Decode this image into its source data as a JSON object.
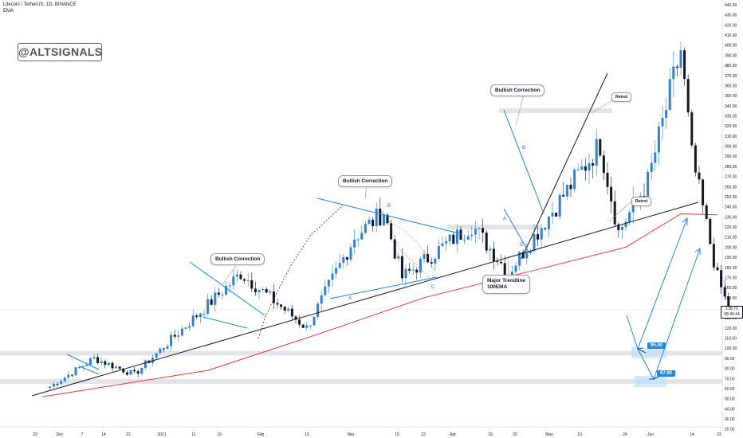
{
  "header": {
    "symbol_line": "Litecoin / TetherUS, 1D, BINANCE",
    "indicator": "EMA"
  },
  "watermark": "@ALTSIGNALS",
  "annotations": {
    "bullish_1": "Bullish Correction",
    "bullish_2": "Bullish Correction",
    "bullish_3": "Bullish Correction",
    "retest_1": "Retest",
    "retest_2": "Retest",
    "trendline_1": "Major Trendline",
    "trendline_2": "100EMA",
    "wave_a1": "A",
    "wave_b1": "B",
    "wave_c1": "C",
    "wave_a2": "A",
    "wave_b2": "B",
    "wave_c2": "C"
  },
  "targets": {
    "t1": "95.00",
    "t2": "67.00"
  },
  "last_price": {
    "price": "138.72",
    "countdown": "08:45:44"
  },
  "colors": {
    "up": "#2f80d8",
    "down": "#131722",
    "ema": "#e53935",
    "trend": "#131722",
    "channel": "#1e88e5",
    "zone": "#d9dbe0",
    "target_zone": "#bbdefb"
  },
  "chart_data": {
    "type": "candlestick",
    "title": "Litecoin / TetherUS, 1D, BINANCE",
    "y_axis_ticks": [
      "440.00",
      "430.00",
      "420.00",
      "410.00",
      "400.00",
      "390.00",
      "380.00",
      "370.00",
      "360.00",
      "350.00",
      "340.00",
      "330.00",
      "320.00",
      "310.00",
      "300.00",
      "290.00",
      "280.00",
      "270.00",
      "260.00",
      "250.00",
      "240.00",
      "230.00",
      "220.00",
      "210.00",
      "200.00",
      "190.00",
      "180.00",
      "170.00",
      "160.00",
      "150.00",
      "140.00",
      "130.00",
      "120.00",
      "110.00",
      "100.00",
      "90.00",
      "80.00",
      "70.00",
      "60.00",
      "50.00",
      "40.00",
      "30.00",
      "20.00"
    ],
    "x_axis_ticks": [
      "23",
      "Dec",
      "7",
      "14",
      "22",
      "2021",
      "11",
      "19",
      "Feb",
      "15",
      "Mar",
      "15",
      "23",
      "Apr",
      "19",
      "20",
      "May",
      "10",
      "24",
      "Jun",
      "14",
      "22"
    ],
    "ylim": [
      20,
      440
    ],
    "price_checkpoints": [
      {
        "date": "Nov 19",
        "price": 62
      },
      {
        "date": "Dec 1",
        "price": 90
      },
      {
        "date": "Dec 12",
        "price": 74
      },
      {
        "date": "Jan 10",
        "price": 174
      },
      {
        "date": "Jan 28",
        "price": 120
      },
      {
        "date": "Feb 10",
        "price": 210
      },
      {
        "date": "Feb 18",
        "price": 235
      },
      {
        "date": "Feb 23",
        "price": 170
      },
      {
        "date": "Mar 14",
        "price": 222
      },
      {
        "date": "Mar 24",
        "price": 175
      },
      {
        "date": "Apr 18",
        "price": 302
      },
      {
        "date": "Apr 23",
        "price": 215
      },
      {
        "date": "May 1",
        "price": 265
      },
      {
        "date": "May 10",
        "price": 395
      },
      {
        "date": "May 13",
        "price": 290
      },
      {
        "date": "May 20",
        "price": 170
      },
      {
        "date": "May 23",
        "price": 138.72
      }
    ],
    "ema_100": [
      {
        "date": "Nov 17",
        "value": 52
      },
      {
        "date": "Jan 1",
        "value": 78
      },
      {
        "date": "Feb 1",
        "value": 115
      },
      {
        "date": "Mar 1",
        "value": 150
      },
      {
        "date": "Apr 1",
        "value": 178
      },
      {
        "date": "Apr 25",
        "value": 200
      },
      {
        "date": "May 10",
        "value": 233
      },
      {
        "date": "May 20",
        "value": 232
      }
    ],
    "support_zones": [
      335,
      220,
      95,
      67
    ],
    "projection_targets": [
      95,
      67
    ]
  }
}
